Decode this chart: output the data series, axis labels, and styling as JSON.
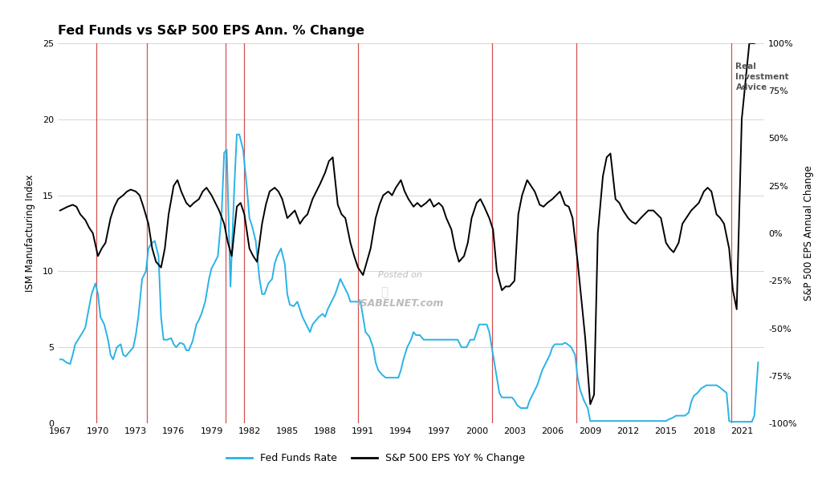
{
  "title": "Fed Funds vs S&P 500 EPS Ann. % Change",
  "ylabel_left": "ISM Manufacturing Index",
  "ylabel_right": "S&P 500 EPS Annual Change",
  "xlabel": "",
  "background_color": "#ffffff",
  "grid_color": "#d0d0d0",
  "recession_lines": [
    1969.9,
    1973.9,
    1980.1,
    1981.6,
    1990.6,
    2001.2,
    2007.9,
    2020.2
  ],
  "recession_color": "#cc3333",
  "fed_funds_color": "#29b3e6",
  "eps_color": "#000000",
  "ylim_left": [
    0,
    25
  ],
  "ylim_right": [
    -100,
    100
  ],
  "yticks_left": [
    0,
    5,
    10,
    15,
    20,
    25
  ],
  "yticks_right": [
    -100,
    -75,
    -50,
    -25,
    0,
    25,
    50,
    75,
    100
  ],
  "ytick_labels_right": [
    "-100%",
    "-75%",
    "-50%",
    "-25%",
    "0%",
    "25%",
    "50%",
    "75%",
    "100%"
  ],
  "xticks": [
    1967,
    1970,
    1973,
    1976,
    1979,
    1982,
    1985,
    1988,
    1991,
    1994,
    1997,
    2000,
    2003,
    2006,
    2009,
    2012,
    2015,
    2018,
    2021
  ],
  "legend_items": [
    "Fed Funds Rate",
    "S&P 500 EPS YoY % Change"
  ],
  "watermark_line1": "Posted on",
  "watermark_line2": "ISABELNET.com",
  "fed_funds_data": {
    "years": [
      1967.0,
      1967.2,
      1967.5,
      1967.8,
      1968.0,
      1968.2,
      1968.5,
      1968.8,
      1969.0,
      1969.2,
      1969.5,
      1969.8,
      1970.0,
      1970.2,
      1970.5,
      1970.8,
      1971.0,
      1971.2,
      1971.5,
      1971.8,
      1972.0,
      1972.2,
      1972.5,
      1972.8,
      1973.0,
      1973.2,
      1973.5,
      1973.8,
      1974.0,
      1974.2,
      1974.5,
      1974.8,
      1975.0,
      1975.2,
      1975.5,
      1975.8,
      1976.0,
      1976.2,
      1976.5,
      1976.8,
      1977.0,
      1977.2,
      1977.5,
      1977.8,
      1978.0,
      1978.2,
      1978.5,
      1978.8,
      1979.0,
      1979.2,
      1979.5,
      1979.8,
      1980.0,
      1980.2,
      1980.5,
      1980.8,
      1981.0,
      1981.2,
      1981.5,
      1981.8,
      1982.0,
      1982.2,
      1982.5,
      1982.8,
      1983.0,
      1983.2,
      1983.5,
      1983.8,
      1984.0,
      1984.2,
      1984.5,
      1984.8,
      1985.0,
      1985.2,
      1985.5,
      1985.8,
      1986.0,
      1986.2,
      1986.5,
      1986.8,
      1987.0,
      1987.2,
      1987.5,
      1987.8,
      1988.0,
      1988.2,
      1988.5,
      1988.8,
      1989.0,
      1989.2,
      1989.5,
      1989.8,
      1990.0,
      1990.2,
      1990.5,
      1990.8,
      1991.0,
      1991.2,
      1991.5,
      1991.8,
      1992.0,
      1992.2,
      1992.5,
      1992.8,
      1993.0,
      1993.2,
      1993.5,
      1993.8,
      1994.0,
      1994.2,
      1994.5,
      1994.8,
      1995.0,
      1995.2,
      1995.5,
      1995.8,
      1996.0,
      1996.2,
      1996.5,
      1996.8,
      1997.0,
      1997.2,
      1997.5,
      1997.8,
      1998.0,
      1998.2,
      1998.5,
      1998.8,
      1999.0,
      1999.2,
      1999.5,
      1999.8,
      2000.0,
      2000.2,
      2000.5,
      2000.8,
      2001.0,
      2001.2,
      2001.5,
      2001.8,
      2002.0,
      2002.2,
      2002.5,
      2002.8,
      2003.0,
      2003.2,
      2003.5,
      2003.8,
      2004.0,
      2004.2,
      2004.5,
      2004.8,
      2005.0,
      2005.2,
      2005.5,
      2005.8,
      2006.0,
      2006.2,
      2006.5,
      2006.8,
      2007.0,
      2007.2,
      2007.5,
      2007.8,
      2008.0,
      2008.2,
      2008.5,
      2008.8,
      2009.0,
      2009.2,
      2009.5,
      2009.8,
      2010.0,
      2010.2,
      2010.5,
      2010.8,
      2011.0,
      2011.2,
      2011.5,
      2011.8,
      2012.0,
      2012.2,
      2012.5,
      2012.8,
      2013.0,
      2013.2,
      2013.5,
      2013.8,
      2014.0,
      2014.2,
      2014.5,
      2014.8,
      2015.0,
      2015.2,
      2015.5,
      2015.8,
      2016.0,
      2016.2,
      2016.5,
      2016.8,
      2017.0,
      2017.2,
      2017.5,
      2017.8,
      2018.0,
      2018.2,
      2018.5,
      2018.8,
      2019.0,
      2019.2,
      2019.5,
      2019.8,
      2020.0,
      2020.2,
      2020.5,
      2020.8,
      2021.0,
      2021.2,
      2021.5,
      2021.8,
      2022.0,
      2022.3
    ],
    "values": [
      4.2,
      4.2,
      4.0,
      3.9,
      4.5,
      5.2,
      5.6,
      6.0,
      6.3,
      7.2,
      8.5,
      9.2,
      8.5,
      7.0,
      6.5,
      5.5,
      4.5,
      4.2,
      5.0,
      5.2,
      4.5,
      4.4,
      4.7,
      5.0,
      5.8,
      7.0,
      9.5,
      10.0,
      11.5,
      11.8,
      12.0,
      11.0,
      7.0,
      5.5,
      5.5,
      5.6,
      5.2,
      5.0,
      5.3,
      5.2,
      4.8,
      4.8,
      5.4,
      6.5,
      6.8,
      7.2,
      8.0,
      9.5,
      10.2,
      10.5,
      11.0,
      13.8,
      17.8,
      18.0,
      9.0,
      15.5,
      19.0,
      19.0,
      18.0,
      15.5,
      13.5,
      13.0,
      12.0,
      9.5,
      8.5,
      8.5,
      9.2,
      9.5,
      10.5,
      11.0,
      11.5,
      10.5,
      8.5,
      7.8,
      7.7,
      8.0,
      7.5,
      7.0,
      6.5,
      6.0,
      6.5,
      6.7,
      7.0,
      7.2,
      7.0,
      7.5,
      8.0,
      8.5,
      9.0,
      9.5,
      9.0,
      8.5,
      8.0,
      8.0,
      8.0,
      8.0,
      7.0,
      6.0,
      5.7,
      5.0,
      4.0,
      3.5,
      3.2,
      3.0,
      3.0,
      3.0,
      3.0,
      3.0,
      3.5,
      4.2,
      5.0,
      5.5,
      6.0,
      5.8,
      5.8,
      5.5,
      5.5,
      5.5,
      5.5,
      5.5,
      5.5,
      5.5,
      5.5,
      5.5,
      5.5,
      5.5,
      5.5,
      5.0,
      5.0,
      5.0,
      5.5,
      5.5,
      6.0,
      6.5,
      6.5,
      6.5,
      6.0,
      5.0,
      3.5,
      2.0,
      1.7,
      1.7,
      1.7,
      1.7,
      1.5,
      1.2,
      1.0,
      1.0,
      1.0,
      1.5,
      2.0,
      2.5,
      3.0,
      3.5,
      4.0,
      4.5,
      5.0,
      5.2,
      5.2,
      5.2,
      5.3,
      5.2,
      5.0,
      4.5,
      3.0,
      2.2,
      1.5,
      1.0,
      0.15,
      0.15,
      0.15,
      0.15,
      0.15,
      0.15,
      0.15,
      0.15,
      0.15,
      0.15,
      0.15,
      0.15,
      0.15,
      0.15,
      0.15,
      0.15,
      0.15,
      0.15,
      0.15,
      0.15,
      0.15,
      0.15,
      0.15,
      0.15,
      0.15,
      0.25,
      0.35,
      0.5,
      0.5,
      0.5,
      0.5,
      0.7,
      1.4,
      1.8,
      2.0,
      2.3,
      2.4,
      2.5,
      2.5,
      2.5,
      2.5,
      2.4,
      2.2,
      2.0,
      0.15,
      0.1,
      0.1,
      0.1,
      0.1,
      0.1,
      0.1,
      0.1,
      0.5,
      4.0
    ]
  },
  "eps_data": {
    "years": [
      1967.0,
      1967.3,
      1967.6,
      1968.0,
      1968.3,
      1968.6,
      1969.0,
      1969.3,
      1969.6,
      1970.0,
      1970.3,
      1970.6,
      1971.0,
      1971.3,
      1971.6,
      1972.0,
      1972.3,
      1972.6,
      1973.0,
      1973.3,
      1973.6,
      1974.0,
      1974.3,
      1974.6,
      1975.0,
      1975.3,
      1975.6,
      1976.0,
      1976.3,
      1976.6,
      1977.0,
      1977.3,
      1977.6,
      1978.0,
      1978.3,
      1978.6,
      1979.0,
      1979.3,
      1979.6,
      1980.0,
      1980.3,
      1980.6,
      1981.0,
      1981.3,
      1981.6,
      1982.0,
      1982.3,
      1982.6,
      1983.0,
      1983.3,
      1983.6,
      1984.0,
      1984.3,
      1984.6,
      1985.0,
      1985.3,
      1985.6,
      1986.0,
      1986.3,
      1986.6,
      1987.0,
      1987.3,
      1987.6,
      1988.0,
      1988.3,
      1988.6,
      1989.0,
      1989.3,
      1989.6,
      1990.0,
      1990.3,
      1990.6,
      1991.0,
      1991.3,
      1991.6,
      1992.0,
      1992.3,
      1992.6,
      1993.0,
      1993.3,
      1993.6,
      1994.0,
      1994.3,
      1994.6,
      1995.0,
      1995.3,
      1995.6,
      1996.0,
      1996.3,
      1996.6,
      1997.0,
      1997.3,
      1997.6,
      1998.0,
      1998.3,
      1998.6,
      1999.0,
      1999.3,
      1999.6,
      2000.0,
      2000.3,
      2000.6,
      2001.0,
      2001.3,
      2001.6,
      2002.0,
      2002.3,
      2002.6,
      2003.0,
      2003.3,
      2003.6,
      2004.0,
      2004.3,
      2004.6,
      2005.0,
      2005.3,
      2005.6,
      2006.0,
      2006.3,
      2006.6,
      2007.0,
      2007.3,
      2007.6,
      2008.0,
      2008.3,
      2008.6,
      2009.0,
      2009.3,
      2009.6,
      2010.0,
      2010.3,
      2010.6,
      2011.0,
      2011.3,
      2011.6,
      2012.0,
      2012.3,
      2012.6,
      2013.0,
      2013.3,
      2013.6,
      2014.0,
      2014.3,
      2014.6,
      2015.0,
      2015.3,
      2015.6,
      2016.0,
      2016.3,
      2016.6,
      2017.0,
      2017.3,
      2017.6,
      2018.0,
      2018.3,
      2018.6,
      2019.0,
      2019.3,
      2019.6,
      2020.0,
      2020.3,
      2020.6,
      2021.0,
      2021.3,
      2021.6,
      2022.0
    ],
    "values": [
      12,
      13,
      14,
      15,
      14,
      10,
      7,
      3,
      0,
      -12,
      -8,
      -5,
      8,
      14,
      18,
      20,
      22,
      23,
      22,
      20,
      14,
      5,
      -8,
      -15,
      -18,
      -8,
      10,
      25,
      28,
      22,
      16,
      14,
      16,
      18,
      22,
      24,
      20,
      16,
      12,
      5,
      -5,
      -12,
      14,
      16,
      10,
      -8,
      -12,
      -15,
      5,
      15,
      22,
      24,
      22,
      18,
      8,
      10,
      12,
      5,
      8,
      10,
      18,
      22,
      26,
      32,
      38,
      40,
      15,
      10,
      8,
      -5,
      -12,
      -18,
      -22,
      -15,
      -8,
      8,
      15,
      20,
      22,
      20,
      24,
      28,
      22,
      18,
      14,
      16,
      14,
      16,
      18,
      14,
      16,
      14,
      8,
      2,
      -8,
      -15,
      -12,
      -5,
      8,
      16,
      18,
      14,
      8,
      2,
      -20,
      -30,
      -28,
      -28,
      -25,
      10,
      20,
      28,
      25,
      22,
      15,
      14,
      16,
      18,
      20,
      22,
      15,
      14,
      8,
      -15,
      -35,
      -55,
      -90,
      -85,
      0,
      30,
      40,
      42,
      18,
      16,
      12,
      8,
      6,
      5,
      8,
      10,
      12,
      12,
      10,
      8,
      -5,
      -8,
      -10,
      -5,
      5,
      8,
      12,
      14,
      16,
      22,
      24,
      22,
      10,
      8,
      5,
      -8,
      -30,
      -40,
      60,
      80,
      100,
      100
    ]
  }
}
